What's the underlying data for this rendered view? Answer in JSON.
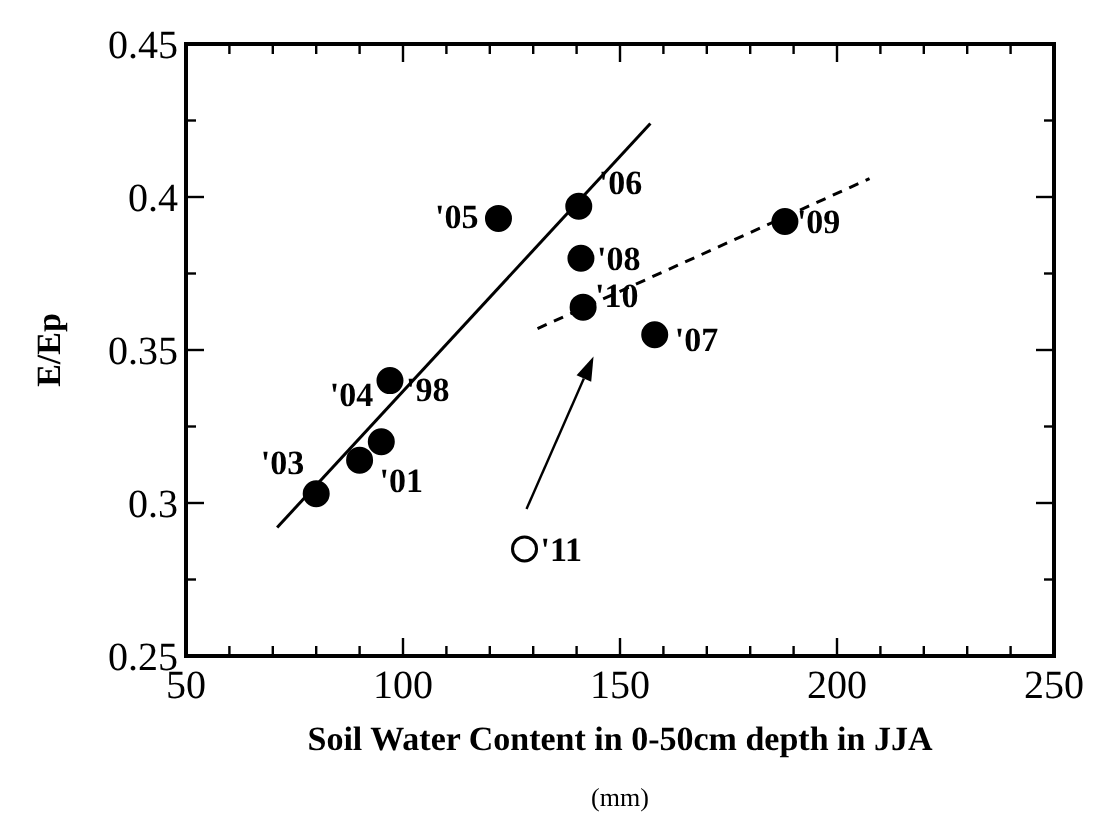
{
  "chart_data": {
    "type": "scatter",
    "xlabel": "Soil Water Content in 0-50cm depth in JJA\n(mm)",
    "ylabel": "E/Ep",
    "xlim": [
      50,
      250
    ],
    "ylim": [
      0.25,
      0.45
    ],
    "xticks": [
      50,
      {
        "value": 60,
        "label": null
      },
      {
        "value": 70,
        "label": null
      },
      {
        "value": 80,
        "label": null
      },
      {
        "value": 90,
        "label": null
      },
      100,
      {
        "value": 110,
        "label": null
      },
      {
        "value": 120,
        "label": null
      },
      {
        "value": 130,
        "label": null
      },
      {
        "value": 140,
        "label": null
      },
      150,
      {
        "value": 160,
        "label": null
      },
      {
        "value": 170,
        "label": null
      },
      {
        "value": 180,
        "label": null
      },
      {
        "value": 190,
        "label": null
      },
      200,
      {
        "value": 210,
        "label": null
      },
      {
        "value": 220,
        "label": null
      },
      {
        "value": 230,
        "label": null
      },
      {
        "value": 240,
        "label": null
      },
      250
    ],
    "yticks": [
      0.25,
      {
        "value": 0.275,
        "label": null
      },
      0.3,
      {
        "value": 0.325,
        "label": null
      },
      0.35,
      {
        "value": 0.375,
        "label": null
      },
      0.4,
      {
        "value": 0.425,
        "label": null
      },
      0.45
    ],
    "grid": false,
    "marker": "circle",
    "series": [
      {
        "color": "#000000",
        "x": [
          80,
          90,
          95,
          97,
          122,
          140.5,
          141,
          141.5,
          158,
          188
        ],
        "values": [
          0.303,
          0.314,
          0.32,
          0.34,
          0.393,
          0.397,
          0.38,
          0.364,
          0.355,
          0.392
        ]
      },
      {
        "color": "#ffffff",
        "x": [
          128
        ],
        "values": [
          0.285
        ]
      },
      {
        "type": "line",
        "color": "#000000",
        "line_style": "solid",
        "marker": "none",
        "x": [
          71,
          157
        ],
        "values": [
          0.292,
          0.424
        ]
      },
      {
        "type": "line",
        "color": "#000000",
        "line_style": "dashed",
        "marker": "none",
        "x": [
          131,
          207.5
        ],
        "values": [
          0.357,
          0.406
        ]
      }
    ],
    "annotations": [
      {
        "text": "'03",
        "x": 80,
        "y": 0.303
      },
      {
        "text": "'01",
        "x": 90,
        "y": 0.314
      },
      {
        "text": "'04",
        "x": 95,
        "y": 0.32
      },
      {
        "text": "'98",
        "x": 97,
        "y": 0.34
      },
      {
        "text": "'05",
        "x": 122,
        "y": 0.393
      },
      {
        "text": "'06",
        "x": 140.5,
        "y": 0.397
      },
      {
        "text": "'08",
        "x": 141,
        "y": 0.38
      },
      {
        "text": "'10",
        "x": 141.5,
        "y": 0.364
      },
      {
        "text": "'07",
        "x": 158,
        "y": 0.355
      },
      {
        "text": "'09",
        "x": 188,
        "y": 0.392
      },
      {
        "text": "'11",
        "x": 128,
        "y": 0.285
      }
    ]
  }
}
